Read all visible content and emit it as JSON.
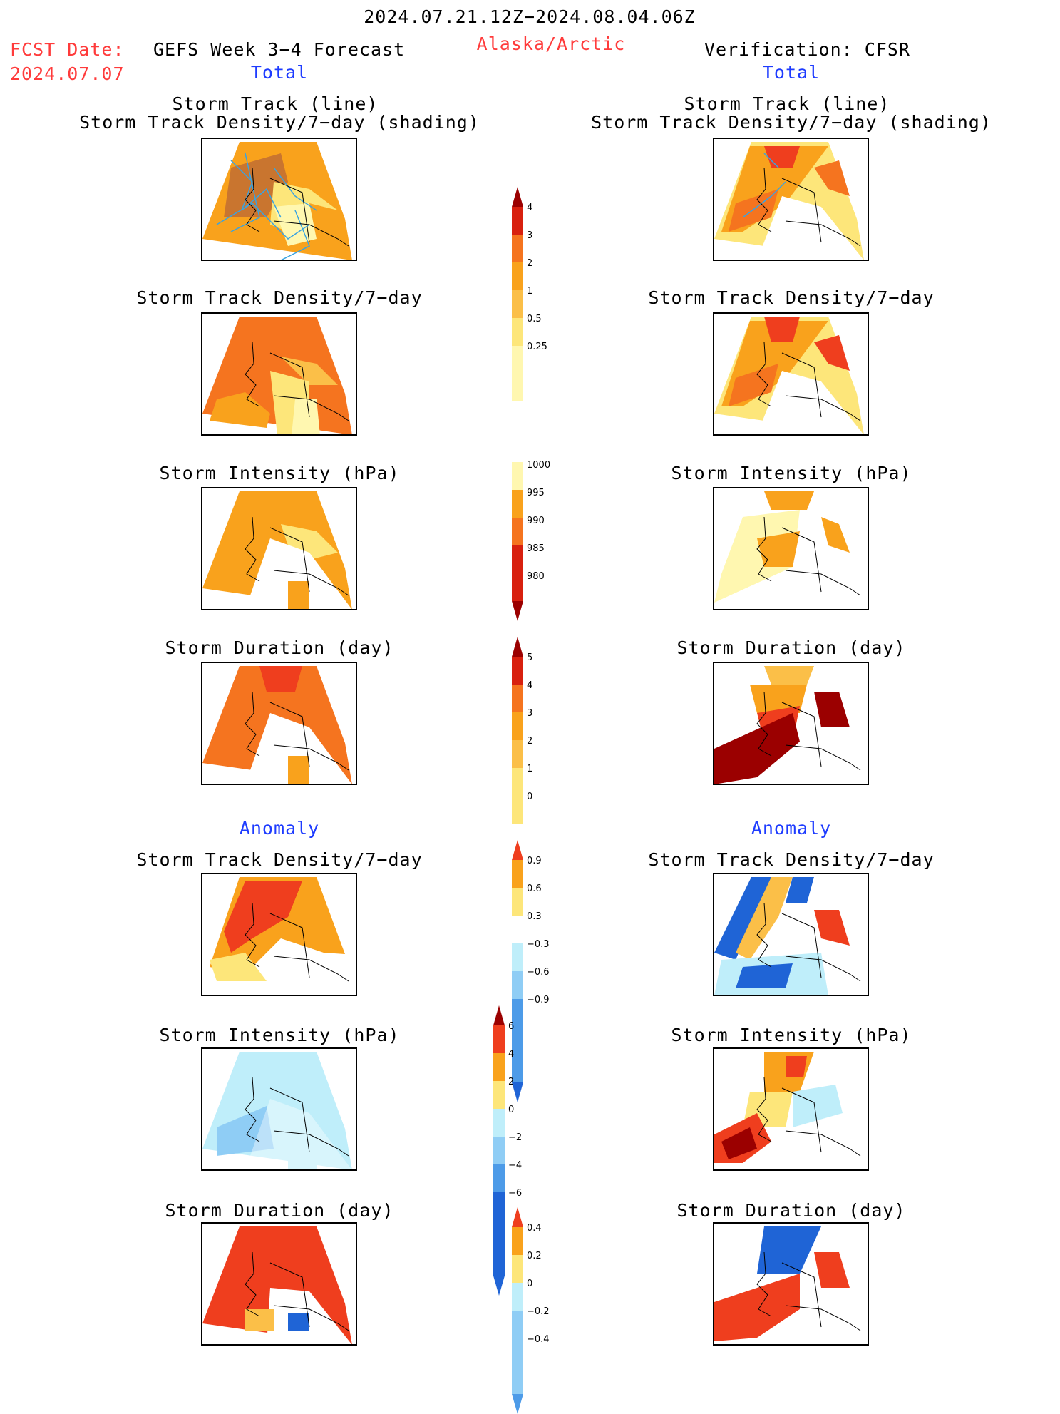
{
  "header": {
    "period": "2024.07.21.12Z−2024.08.04.06Z",
    "fcst_label": "FCST Date:",
    "fcst_date": "2024.07.07",
    "model": "GEFS Week 3−4 Forecast",
    "region": "Alaska/Arctic",
    "verification": "Verification: CFSR"
  },
  "sections": {
    "total_left": "Total",
    "total_right": "Total",
    "anomaly_left": "Anomaly",
    "anomaly_right": "Anomaly"
  },
  "titles": {
    "track_line": "Storm Track (line)",
    "track_shading": "Storm Track Density/7−day (shading)",
    "track_density": "Storm Track Density/7−day",
    "intensity": "Storm Intensity (hPa)",
    "duration": "Storm Duration (day)"
  },
  "colorbars": {
    "density": [
      "4",
      "3",
      "2",
      "1",
      "0.5",
      "0.25"
    ],
    "intensity": [
      "1000",
      "995",
      "990",
      "985",
      "980"
    ],
    "duration": [
      "5",
      "4",
      "3",
      "2",
      "1",
      "0"
    ],
    "density_anom": [
      "0.9",
      "0.6",
      "0.3",
      "−0.3",
      "−0.6",
      "−0.9"
    ],
    "intensity_anom": [
      "6",
      "4",
      "2",
      "0",
      "−2",
      "−4",
      "−6"
    ],
    "duration_anom": [
      "0.4",
      "0.2",
      "0",
      "−0.2",
      "−0.4"
    ]
  },
  "colors": {
    "pale_yellow": "#fff7b0",
    "yellow": "#fde67a",
    "light_orange": "#fbbf48",
    "orange": "#f9a21c",
    "dark_orange": "#f5741f",
    "red_orange": "#ef3e1e",
    "red": "#d8200f",
    "dark_red": "#9b0000",
    "light_blue": "#bfeefa",
    "sky_blue": "#8fcdf5",
    "mid_blue": "#4d9be8",
    "blue": "#1f64d6",
    "track_line": "#3aa3e0"
  }
}
